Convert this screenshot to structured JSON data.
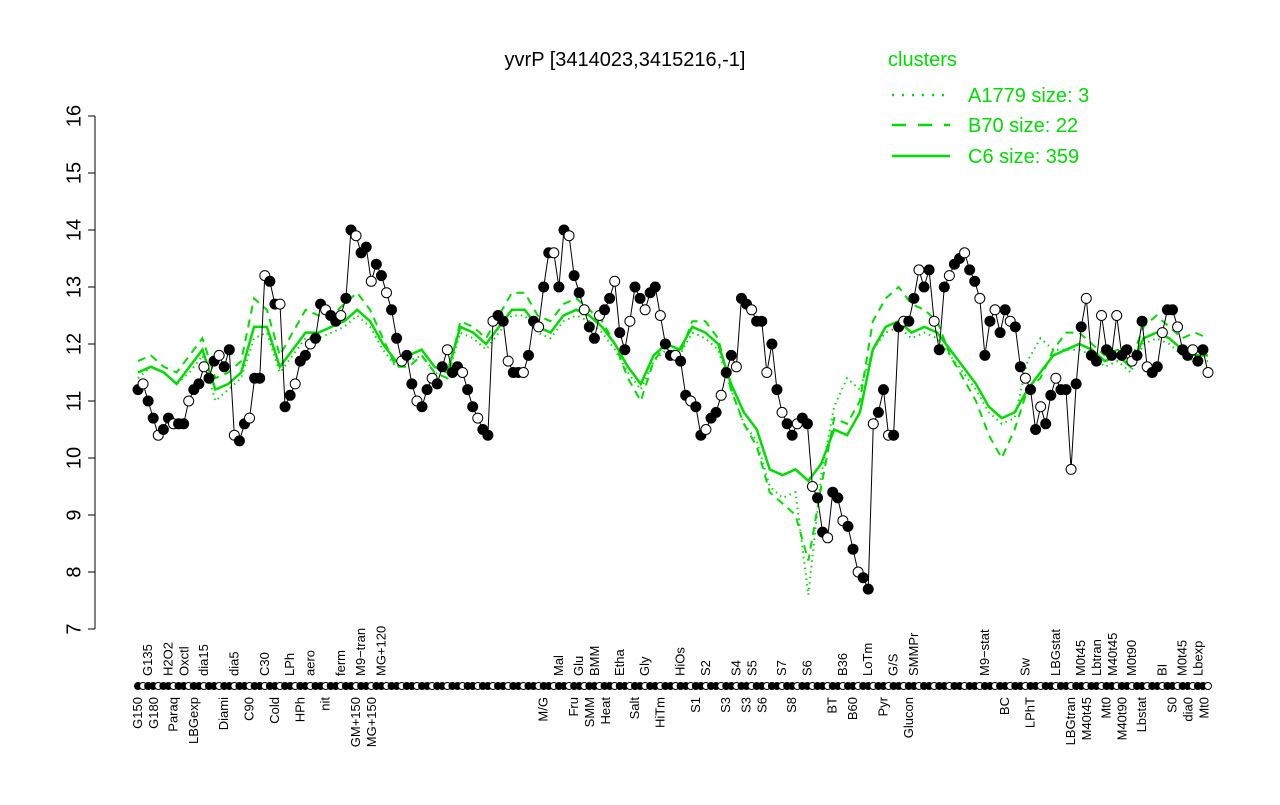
{
  "chart_data": {
    "type": "line",
    "title": "yvrP [3414023,3415216,-1]",
    "xlabel": "",
    "ylabel": "",
    "ylim": [
      7,
      16
    ],
    "yticks": [
      7,
      8,
      9,
      10,
      11,
      12,
      13,
      14,
      15,
      16
    ],
    "grid": false,
    "legend": {
      "title": "clusters",
      "placement": "top-right",
      "entries": [
        {
          "label": "A1779 size: 3",
          "style": "dotted"
        },
        {
          "label": "B70 size: 22",
          "style": "dashed"
        },
        {
          "label": "C6 size: 359",
          "style": "solid"
        }
      ]
    },
    "colors": {
      "line": "#00dd00",
      "points": "#000000",
      "legend": "#00dd00"
    },
    "points": [
      11.2,
      11.3,
      11.0,
      10.7,
      10.4,
      10.5,
      10.7,
      10.6,
      10.6,
      10.6,
      11.0,
      11.2,
      11.3,
      11.6,
      11.4,
      11.7,
      11.8,
      11.6,
      11.9,
      10.4,
      10.3,
      10.6,
      10.7,
      11.4,
      11.4,
      13.2,
      13.1,
      12.7,
      12.7,
      10.9,
      11.1,
      11.3,
      11.7,
      11.8,
      12.0,
      12.1,
      12.7,
      12.6,
      12.5,
      12.4,
      12.5,
      12.8,
      14.0,
      13.9,
      13.6,
      13.7,
      13.1,
      13.4,
      13.2,
      12.9,
      12.6,
      12.1,
      11.7,
      11.8,
      11.3,
      11.0,
      10.9,
      11.2,
      11.4,
      11.3,
      11.6,
      11.9,
      11.5,
      11.6,
      11.5,
      11.2,
      10.9,
      10.7,
      10.5,
      10.4,
      12.4,
      12.5,
      12.4,
      11.7,
      11.5,
      11.5,
      11.5,
      11.8,
      12.4,
      12.3,
      13.0,
      13.6,
      13.6,
      13.0,
      14.0,
      13.9,
      13.2,
      12.9,
      12.6,
      12.3,
      12.1,
      12.5,
      12.6,
      12.8,
      13.1,
      12.2,
      11.9,
      12.4,
      13.0,
      12.8,
      12.6,
      12.9,
      13.0,
      12.5,
      12.0,
      11.8,
      11.8,
      11.7,
      11.1,
      11.0,
      10.9,
      10.4,
      10.5,
      10.7,
      10.8,
      11.1,
      11.5,
      11.8,
      11.6,
      12.8,
      12.7,
      12.6,
      12.4,
      12.4,
      11.5,
      12.0,
      11.2,
      10.8,
      10.6,
      10.4,
      10.6,
      10.7,
      10.6,
      9.5,
      9.3,
      8.7,
      8.6,
      9.4,
      9.3,
      8.9,
      8.8,
      8.4,
      8.0,
      7.9,
      7.7,
      10.6,
      10.8,
      11.2,
      10.4,
      10.4,
      12.3,
      12.4,
      12.4,
      12.8,
      13.3,
      13.0,
      13.3,
      12.4,
      11.9,
      13.0,
      13.2,
      13.4,
      13.5,
      13.6,
      13.3,
      13.1,
      12.8,
      11.8,
      12.4,
      12.6,
      12.2,
      12.6,
      12.4,
      12.3,
      11.6,
      11.4,
      11.2,
      10.5,
      10.9,
      10.6,
      11.1,
      11.4,
      11.2,
      11.2,
      9.8,
      11.3,
      12.3,
      12.8,
      11.8,
      11.7,
      12.5,
      11.9,
      11.8,
      12.5,
      11.8,
      11.9,
      11.7,
      11.8,
      12.4,
      11.6,
      11.5,
      11.6,
      12.2,
      12.6,
      12.6,
      12.3,
      11.9,
      11.8,
      11.9,
      11.7,
      11.9,
      11.5
    ],
    "series": [
      {
        "name": "C6 size: 359",
        "style": "solid",
        "values": [
          11.5,
          11.6,
          11.5,
          11.3,
          11.6,
          11.9,
          11.2,
          11.3,
          11.5,
          12.3,
          12.3,
          11.6,
          11.9,
          12.2,
          12.2,
          12.3,
          12.4,
          12.6,
          12.4,
          12.0,
          11.7,
          11.8,
          11.9,
          11.6,
          11.5,
          12.3,
          12.2,
          12.0,
          12.3,
          12.6,
          12.6,
          12.3,
          12.2,
          12.5,
          12.6,
          12.5,
          12.3,
          12.0,
          11.6,
          11.3,
          11.8,
          12.0,
          11.9,
          12.3,
          12.2,
          12.0,
          11.3,
          10.8,
          10.5,
          9.8,
          9.7,
          9.8,
          9.6,
          9.9,
          10.5,
          10.4,
          10.8,
          11.9,
          12.3,
          12.4,
          12.2,
          12.3,
          12.2,
          11.9,
          11.6,
          11.3,
          10.9,
          10.7,
          10.8,
          11.2,
          11.5,
          11.8,
          11.9,
          12.0,
          11.9,
          11.7,
          11.8,
          11.6,
          12.1,
          12.2,
          12.1,
          11.9,
          11.8,
          11.8
        ]
      },
      {
        "name": "B70 size: 22",
        "style": "dashed",
        "values": [
          11.7,
          11.8,
          11.6,
          11.5,
          11.8,
          12.1,
          11.4,
          11.5,
          11.7,
          12.8,
          12.6,
          11.8,
          12.2,
          12.6,
          12.5,
          12.5,
          12.7,
          12.9,
          12.6,
          12.1,
          11.6,
          11.6,
          11.8,
          11.5,
          11.4,
          12.4,
          12.3,
          12.1,
          12.5,
          12.9,
          12.9,
          12.5,
          12.4,
          12.7,
          12.8,
          12.6,
          12.4,
          12.0,
          11.4,
          11.0,
          11.7,
          12.0,
          11.8,
          12.4,
          12.4,
          12.1,
          11.2,
          10.6,
          10.2,
          9.4,
          9.2,
          9.0,
          8.2,
          9.5,
          10.7,
          10.6,
          11.0,
          12.4,
          12.8,
          13.0,
          12.7,
          12.6,
          12.4,
          11.8,
          11.4,
          11.0,
          10.4,
          10.0,
          10.5,
          11.2,
          11.4,
          11.9,
          12.2,
          12.2,
          12.0,
          11.8,
          11.9,
          11.7,
          12.3,
          12.5,
          12.3,
          12.1,
          12.2,
          12.1
        ]
      },
      {
        "name": "A1779 size: 3",
        "style": "dotted",
        "values": [
          11.4,
          11.6,
          11.5,
          11.3,
          11.5,
          11.8,
          11.0,
          11.2,
          11.4,
          12.1,
          12.2,
          11.5,
          11.8,
          12.1,
          12.1,
          12.2,
          12.3,
          12.5,
          12.3,
          11.9,
          11.6,
          11.7,
          11.8,
          11.5,
          11.4,
          12.2,
          12.1,
          11.9,
          12.2,
          12.5,
          12.5,
          12.2,
          12.1,
          12.4,
          12.5,
          12.4,
          12.2,
          11.9,
          11.5,
          11.2,
          11.7,
          11.9,
          11.8,
          12.2,
          12.1,
          11.9,
          11.2,
          10.6,
          10.3,
          9.5,
          9.3,
          9.4,
          7.6,
          9.7,
          10.9,
          11.4,
          11.2,
          11.9,
          12.2,
          12.3,
          12.1,
          12.2,
          12.1,
          11.8,
          11.5,
          11.2,
          10.8,
          10.6,
          10.7,
          11.7,
          12.1,
          11.9,
          11.9,
          11.9,
          11.8,
          11.6,
          11.7,
          11.5,
          12.0,
          12.1,
          12.0,
          11.8,
          11.7,
          11.7
        ]
      }
    ],
    "x_labels_top": [
      {
        "label": "G135",
        "index": 2
      },
      {
        "label": "H2O2",
        "index": 6
      },
      {
        "label": "Oxctl",
        "index": 9
      },
      {
        "label": "dia15",
        "index": 13
      },
      {
        "label": "dia5",
        "index": 19
      },
      {
        "label": "C30",
        "index": 25
      },
      {
        "label": "LPh",
        "index": 30
      },
      {
        "label": "aero",
        "index": 34
      },
      {
        "label": "ferm",
        "index": 40
      },
      {
        "label": "M9−tran",
        "index": 44
      },
      {
        "label": "MG+120",
        "index": 48
      },
      {
        "label": "Mal",
        "index": 83
      },
      {
        "label": "Glu",
        "index": 87
      },
      {
        "label": "BMM",
        "index": 90
      },
      {
        "label": "Etha",
        "index": 95
      },
      {
        "label": "Gly",
        "index": 100
      },
      {
        "label": "HiOs",
        "index": 107
      },
      {
        "label": "S2",
        "index": 112
      },
      {
        "label": "S4",
        "index": 118
      },
      {
        "label": "S5",
        "index": 121
      },
      {
        "label": "S7",
        "index": 127
      },
      {
        "label": "S6",
        "index": 132
      },
      {
        "label": "B36",
        "index": 139
      },
      {
        "label": "LoTm",
        "index": 144
      },
      {
        "label": "G/S",
        "index": 149
      },
      {
        "label": "SMMPr",
        "index": 153
      },
      {
        "label": "M9−stat",
        "index": 167
      },
      {
        "label": "Sw",
        "index": 175
      },
      {
        "label": "LBGstat",
        "index": 181
      },
      {
        "label": "M0t45",
        "index": 186
      },
      {
        "label": "Lbtran",
        "index": 189
      },
      {
        "label": "M40t45",
        "index": 191
      },
      {
        "label": "M0t90",
        "index": 196
      },
      {
        "label": "BI",
        "index": 202
      },
      {
        "label": "M0t45",
        "index": 206
      },
      {
        "label": "Lbexp",
        "index": 208
      }
    ],
    "x_labels_bottom": [
      {
        "label": "G150",
        "index": 0
      },
      {
        "label": "G180",
        "index": 2
      },
      {
        "label": "Paraq",
        "index": 7
      },
      {
        "label": "LBGexp",
        "index": 11
      },
      {
        "label": "Diami",
        "index": 17
      },
      {
        "label": "C90",
        "index": 22
      },
      {
        "label": "Cold",
        "index": 27
      },
      {
        "label": "HPh",
        "index": 32
      },
      {
        "label": "nit",
        "index": 37
      },
      {
        "label": "GM+150",
        "index": 43
      },
      {
        "label": "MG+150",
        "index": 45
      },
      {
        "label": "M/G",
        "index": 80
      },
      {
        "label": "Fru",
        "index": 86
      },
      {
        "label": "SMM",
        "index": 88
      },
      {
        "label": "Heat",
        "index": 92
      },
      {
        "label": "Salt",
        "index": 98
      },
      {
        "label": "HiTm",
        "index": 103
      },
      {
        "label": "S1",
        "index": 110
      },
      {
        "label": "S3",
        "index": 116
      },
      {
        "label": "S3",
        "index": 120
      },
      {
        "label": "S6",
        "index": 123
      },
      {
        "label": "S8",
        "index": 129
      },
      {
        "label": "BT",
        "index": 137
      },
      {
        "label": "B60",
        "index": 141
      },
      {
        "label": "Pyr",
        "index": 147
      },
      {
        "label": "Glucon",
        "index": 152
      },
      {
        "label": "BC",
        "index": 171
      },
      {
        "label": "LPhT",
        "index": 176
      },
      {
        "label": "LBGtran",
        "index": 184
      },
      {
        "label": "M40t45",
        "index": 187
      },
      {
        "label": "Mt0",
        "index": 191
      },
      {
        "label": "M40t90",
        "index": 194
      },
      {
        "label": "Lbstat",
        "index": 198
      },
      {
        "label": "S0",
        "index": 204
      },
      {
        "label": "dia0",
        "index": 206
      },
      {
        "label": "Mt0",
        "index": 209
      }
    ]
  }
}
